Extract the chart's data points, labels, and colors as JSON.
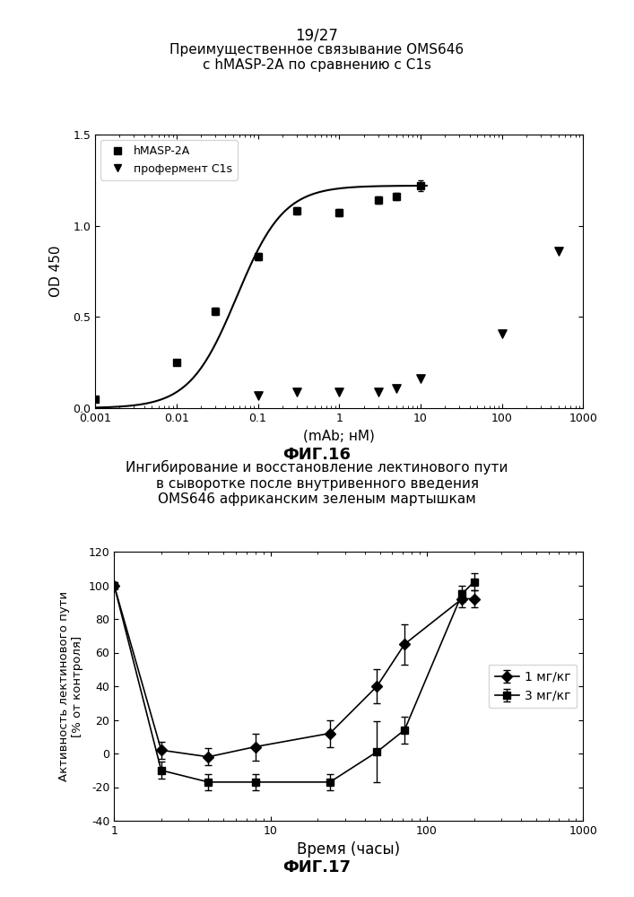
{
  "page_label": "19/27",
  "fig16": {
    "title": "Преимущественное связывание OMS646\nс hMASP-2A по сравнению с C1s",
    "xlabel": "(mAb; нМ)",
    "ylabel": "OD 450",
    "fig_label": "ФИГ.16",
    "hmasp_x": [
      0.001,
      0.01,
      0.03,
      0.1,
      0.3,
      1.0,
      3.0,
      5.0,
      10.0
    ],
    "hmasp_y": [
      0.05,
      0.25,
      0.53,
      0.83,
      1.08,
      1.07,
      1.14,
      1.16,
      1.22
    ],
    "hmasp_yerr": [
      0.0,
      0.0,
      0.02,
      0.02,
      0.02,
      0.02,
      0.02,
      0.02,
      0.03
    ],
    "c1s_x": [
      0.1,
      0.3,
      1.0,
      3.0,
      5.0,
      10.0,
      100.0,
      500.0
    ],
    "c1s_y": [
      0.07,
      0.09,
      0.09,
      0.09,
      0.11,
      0.16,
      0.41,
      0.86
    ],
    "xlim": [
      0.001,
      1000
    ],
    "ylim": [
      0.0,
      1.5
    ],
    "yticks": [
      0.0,
      0.5,
      1.0,
      1.5
    ],
    "xtick_labels": [
      "0.001",
      "0.01",
      "0.1",
      "1",
      "10",
      "100",
      "1000"
    ],
    "xtick_vals": [
      0.001,
      0.01,
      0.1,
      1.0,
      10.0,
      100.0,
      1000.0
    ],
    "legend_hmasp": "hMASP-2A",
    "legend_c1s": "профермент C1s",
    "curve_Ymax": 1.22,
    "curve_EC50": 0.055,
    "curve_n": 1.5
  },
  "fig17": {
    "title": "Ингибирование и восстановление лектинового пути\nв сыворотке после внутривенного введения\nOMS646 африканским зеленым мартышкам",
    "xlabel": "Время (часы)",
    "ylabel": "Активность лектинового пути\n[% от контроля]",
    "fig_label": "ФИГ.17",
    "dose1_x": [
      1,
      2,
      4,
      8,
      24,
      48,
      72,
      168,
      200
    ],
    "dose1_y": [
      100,
      2,
      -2,
      4,
      12,
      40,
      65,
      92,
      92
    ],
    "dose1_yerr": [
      2,
      5,
      5,
      8,
      8,
      10,
      12,
      5,
      5
    ],
    "dose3_x": [
      1,
      2,
      4,
      8,
      24,
      48,
      72,
      168,
      200
    ],
    "dose3_y": [
      100,
      -10,
      -17,
      -17,
      -17,
      1,
      14,
      95,
      102
    ],
    "dose3_yerr": [
      2,
      5,
      5,
      5,
      5,
      18,
      8,
      5,
      5
    ],
    "xlim": [
      1,
      1000
    ],
    "ylim": [
      -40,
      120
    ],
    "yticks": [
      -40,
      -20,
      0,
      20,
      40,
      60,
      80,
      100,
      120
    ],
    "xtick_vals": [
      1,
      10,
      100,
      1000
    ],
    "xtick_labels": [
      "1",
      "10",
      "100",
      "1000"
    ],
    "legend_dose1": "1 мг/кг",
    "legend_dose3": "3 мг/кг"
  }
}
